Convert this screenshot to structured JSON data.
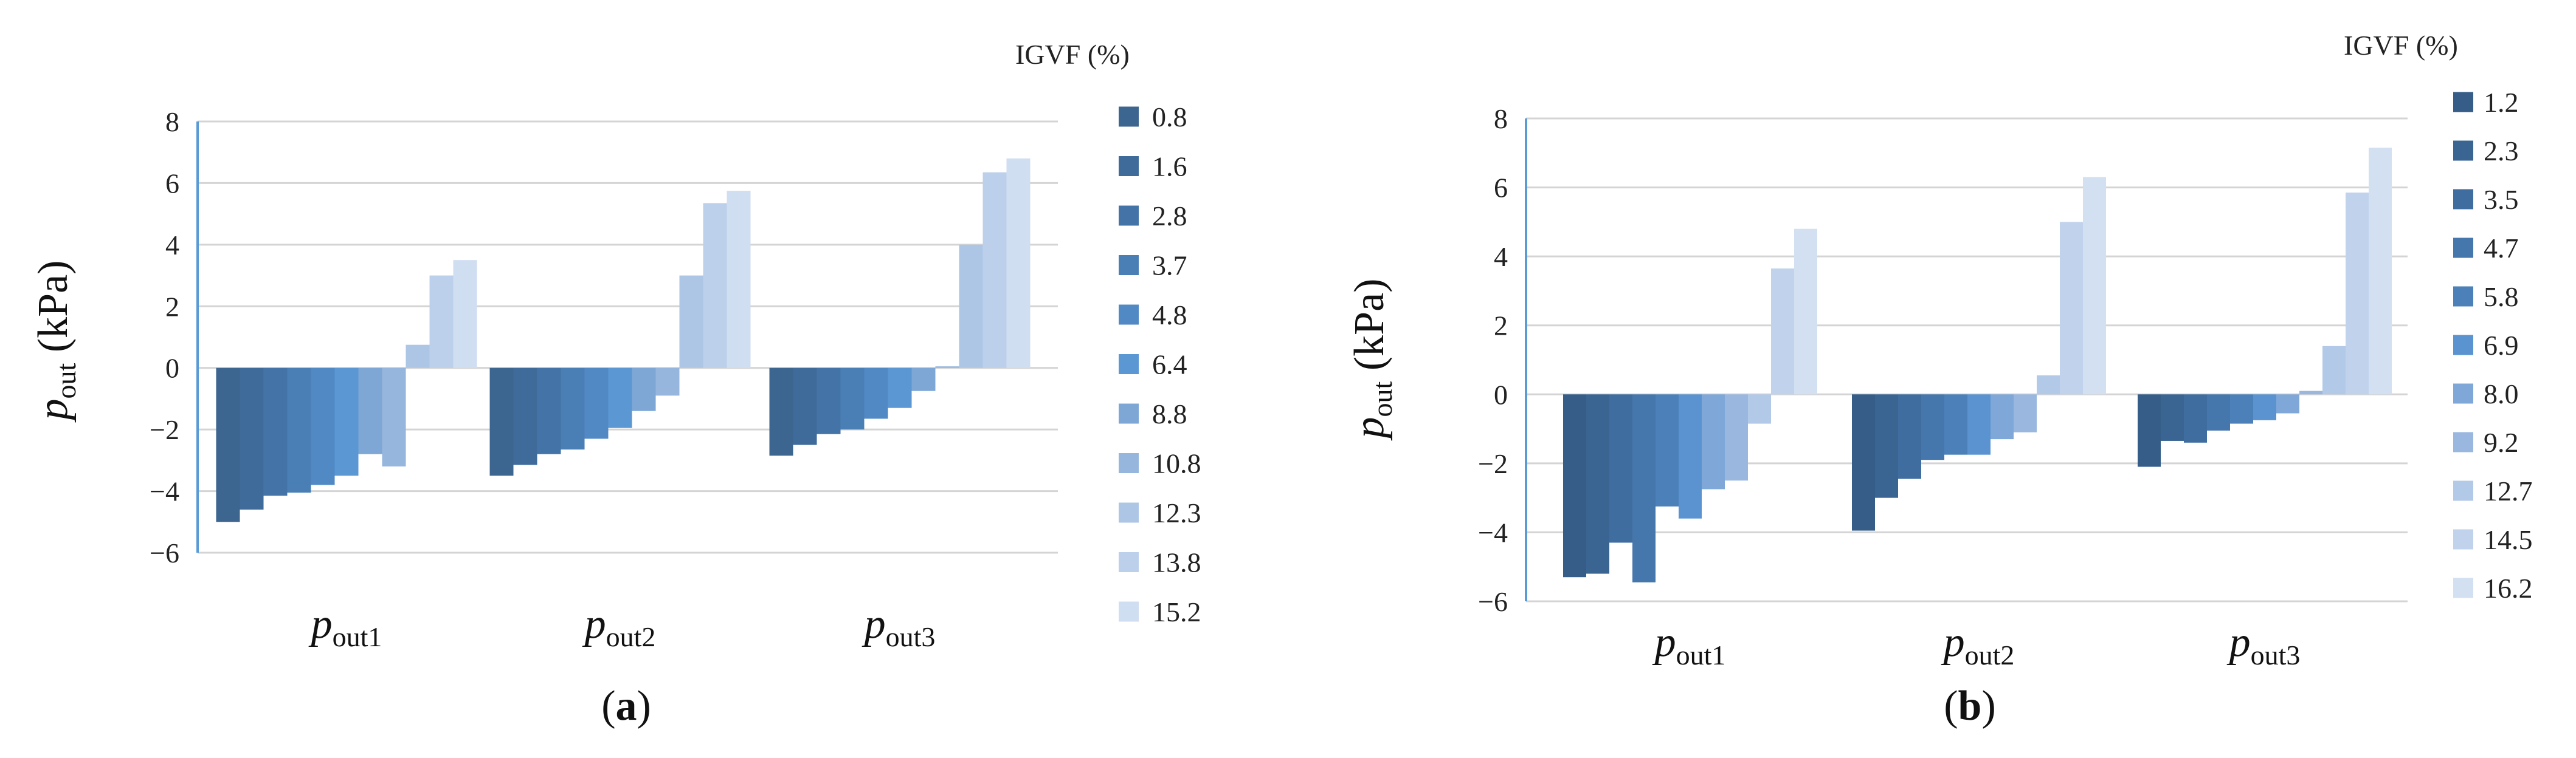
{
  "chart_data": [
    {
      "type": "bar",
      "panel_label": "a",
      "ylabel_var": "p",
      "ylabel_sub": "out",
      "ylabel_unit": "(kPa)",
      "ylim": [
        -6,
        8
      ],
      "yticks": [
        "−6",
        "−4",
        "−2",
        "0",
        "2",
        "4",
        "6",
        "8"
      ],
      "grid": true,
      "legend_title": "IGVF  (%)",
      "legend_position": "right",
      "categories": [
        {
          "var": "p",
          "sub": "out1"
        },
        {
          "var": "p",
          "sub": "out2"
        },
        {
          "var": "p",
          "sub": "out3"
        }
      ],
      "series": [
        {
          "name": "0.8",
          "values": [
            -5.0,
            -3.5,
            -2.85
          ]
        },
        {
          "name": "1.6",
          "values": [
            -4.6,
            -3.15,
            -2.5
          ]
        },
        {
          "name": "2.8",
          "values": [
            -4.15,
            -2.8,
            -2.15
          ]
        },
        {
          "name": "3.7",
          "values": [
            -4.05,
            -2.65,
            -2.0
          ]
        },
        {
          "name": "4.8",
          "values": [
            -3.8,
            -2.3,
            -1.65
          ]
        },
        {
          "name": "6.4",
          "values": [
            -3.5,
            -1.95,
            -1.3
          ]
        },
        {
          "name": "8.8",
          "values": [
            -2.8,
            -1.4,
            -0.75
          ]
        },
        {
          "name": "10.8",
          "values": [
            -3.2,
            -0.9,
            0.05
          ]
        },
        {
          "name": "12.3",
          "values": [
            0.75,
            3.0,
            4.0
          ]
        },
        {
          "name": "13.8",
          "values": [
            3.0,
            5.35,
            6.35
          ]
        },
        {
          "name": "15.2",
          "values": [
            3.5,
            5.75,
            6.8
          ]
        }
      ],
      "colors": [
        "#3c6590",
        "#3f6b9a",
        "#4474a7",
        "#4a7fb6",
        "#5189c5",
        "#5b97d3",
        "#7ea7d6",
        "#96b6dd",
        "#aec6e6",
        "#bcd0eb",
        "#d0def1"
      ]
    },
    {
      "type": "bar",
      "panel_label": "b",
      "ylabel_var": "p",
      "ylabel_sub": "out",
      "ylabel_unit": "(kPa)",
      "ylim": [
        -6,
        8
      ],
      "yticks": [
        "−6",
        "−4",
        "−2",
        "0",
        "2",
        "4",
        "6",
        "8"
      ],
      "grid": true,
      "legend_title": "IGVF  (%)",
      "legend_position": "right",
      "categories": [
        {
          "var": "p",
          "sub": "out1"
        },
        {
          "var": "p",
          "sub": "out2"
        },
        {
          "var": "p",
          "sub": "out3"
        }
      ],
      "series": [
        {
          "name": "1.2",
          "values": [
            -5.3,
            -3.95,
            -2.1
          ]
        },
        {
          "name": "2.3",
          "values": [
            -5.2,
            -3.0,
            -1.35
          ]
        },
        {
          "name": "3.5",
          "values": [
            -4.3,
            -2.45,
            -1.4
          ]
        },
        {
          "name": "4.7",
          "values": [
            -5.45,
            -1.9,
            -1.05
          ]
        },
        {
          "name": "5.8",
          "values": [
            -3.25,
            -1.75,
            -0.85
          ]
        },
        {
          "name": "6.9",
          "values": [
            -3.6,
            -1.75,
            -0.75
          ]
        },
        {
          "name": "8.0",
          "values": [
            -2.75,
            -1.3,
            -0.55
          ]
        },
        {
          "name": "9.2",
          "values": [
            -2.5,
            -1.1,
            0.1
          ]
        },
        {
          "name": "12.7",
          "values": [
            -0.85,
            0.55,
            1.4
          ]
        },
        {
          "name": "14.5",
          "values": [
            3.65,
            5.0,
            5.85
          ]
        },
        {
          "name": "16.2",
          "values": [
            4.8,
            6.3,
            7.15
          ]
        }
      ],
      "colors": [
        "#355d88",
        "#3a6592",
        "#3f6d9f",
        "#4576ac",
        "#4b80b8",
        "#5a93cf",
        "#7fa7d7",
        "#9ab8df",
        "#b2c9e7",
        "#c1d3ec",
        "#d2e0f2"
      ]
    }
  ]
}
